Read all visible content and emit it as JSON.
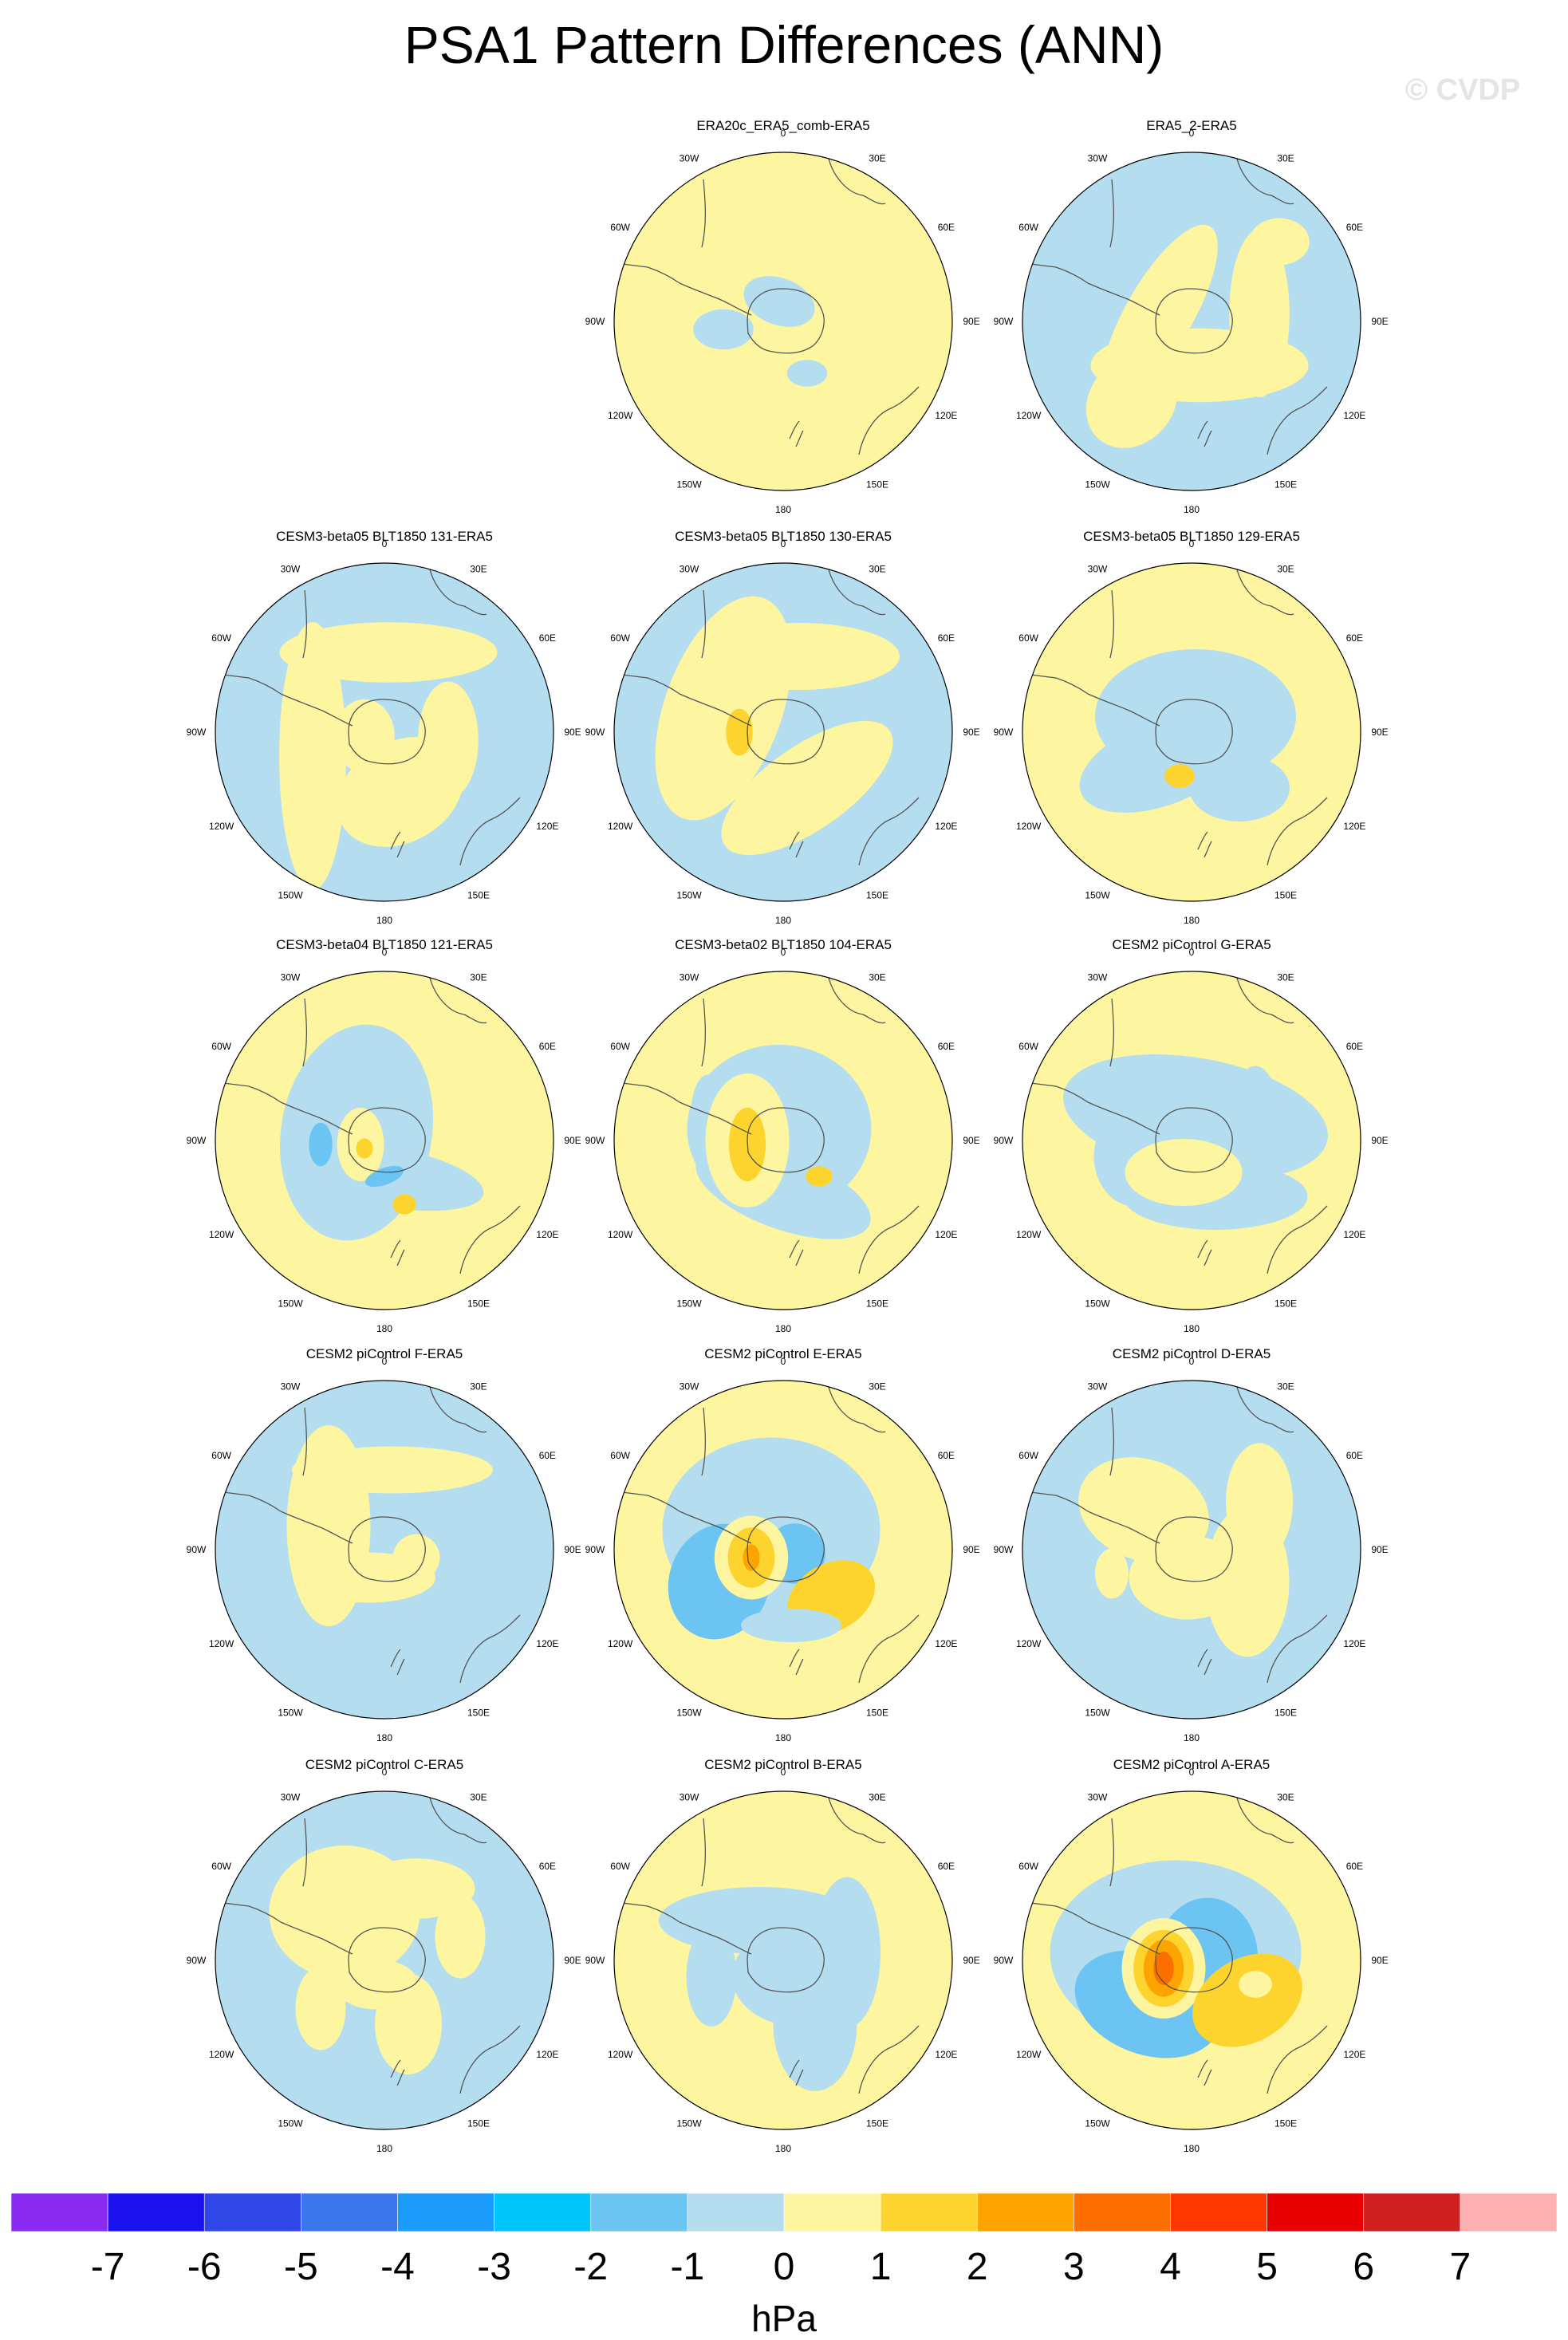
{
  "title": "PSA1 Pattern Differences (ANN)",
  "watermark": "© CVDP",
  "lon_labels": [
    "0",
    "30E",
    "60E",
    "90E",
    "120E",
    "150E",
    "180",
    "150W",
    "120W",
    "90W",
    "60W",
    "30W"
  ],
  "colors": {
    "neg2": "#6bc4f1",
    "neg1": "#b4def0",
    "pos1": "#fdf59f",
    "pos2": "#fdd42e",
    "pos3": "#fda400",
    "pos4": "#fd6e00",
    "coast": "#555555"
  },
  "panels": [
    {
      "title": "ERA20c_ERA5_comb-ERA5",
      "base": "pos1",
      "blobs": [
        [
          "neg1",
          -5,
          25,
          22,
          14,
          20
        ],
        [
          "neg1",
          -75,
          -10,
          18,
          12,
          0
        ],
        [
          "neg1",
          30,
          -65,
          12,
          8,
          0
        ]
      ]
    },
    {
      "title": "ERA5_2-ERA5",
      "base": "neg1",
      "blobs": [
        [
          "pos1",
          -40,
          10,
          20,
          60,
          30
        ],
        [
          "pos1",
          10,
          -55,
          65,
          22,
          0
        ],
        [
          "pos1",
          -75,
          -100,
          25,
          30,
          40
        ],
        [
          "pos1",
          85,
          10,
          18,
          50,
          0
        ],
        [
          "pos1",
          110,
          100,
          18,
          14,
          0
        ]
      ]
    },
    {
      "title": "CESM3-beta05 BLT1850 131-ERA5",
      "base": "neg1",
      "blobs": [
        [
          "pos1",
          5,
          100,
          65,
          18,
          0
        ],
        [
          "pos1",
          80,
          -10,
          18,
          35,
          0
        ],
        [
          "pos1",
          -25,
          -5,
          18,
          22,
          0
        ],
        [
          "pos1",
          20,
          -75,
          40,
          30,
          -30
        ],
        [
          "pos1",
          -90,
          -30,
          20,
          80,
          0
        ]
      ]
    },
    {
      "title": "CESM3-beta05 BLT1850 130-ERA5",
      "base": "neg1",
      "blobs": [
        [
          "pos1",
          -75,
          30,
          35,
          70,
          20
        ],
        [
          "pos1",
          30,
          -70,
          60,
          25,
          -35
        ],
        [
          "pos1",
          20,
          95,
          60,
          20,
          0
        ],
        [
          "pos2",
          -55,
          0,
          8,
          14,
          0
        ]
      ]
    },
    {
      "title": "CESM3-beta05 BLT1850 129-ERA5",
      "base": "pos1",
      "blobs": [
        [
          "neg1",
          5,
          20,
          60,
          40,
          0
        ],
        [
          "neg1",
          -40,
          -40,
          50,
          25,
          -20
        ],
        [
          "neg1",
          60,
          -70,
          30,
          20,
          0
        ],
        [
          "pos2",
          -15,
          -55,
          9,
          7,
          0
        ]
      ]
    },
    {
      "title": "CESM3-beta04 BLT1850 121-ERA5",
      "base": "pos1",
      "blobs": [
        [
          "neg1",
          -35,
          10,
          45,
          65,
          10
        ],
        [
          "neg1",
          0,
          -45,
          60,
          18,
          10
        ],
        [
          "pos1",
          -30,
          -5,
          14,
          22,
          0
        ],
        [
          "pos2",
          -25,
          -10,
          5,
          6,
          0
        ],
        [
          "neg2",
          -80,
          -5,
          7,
          13,
          0
        ],
        [
          "neg2",
          0,
          -45,
          12,
          5,
          -20
        ],
        [
          "pos2",
          25,
          -80,
          7,
          6,
          0
        ]
      ]
    },
    {
      "title": "CESM3-beta02 BLT1850 104-ERA5",
      "base": "pos1",
      "blobs": [
        [
          "neg1",
          -5,
          15,
          55,
          50,
          0
        ],
        [
          "neg1",
          0,
          -65,
          55,
          22,
          20
        ],
        [
          "neg1",
          -95,
          30,
          10,
          25,
          0
        ],
        [
          "pos1",
          -45,
          0,
          25,
          40,
          0
        ],
        [
          "pos2",
          -45,
          -5,
          11,
          22,
          0
        ],
        [
          "pos2",
          45,
          -45,
          8,
          6,
          0
        ]
      ]
    },
    {
      "title": "CESM2 piControl G-ERA5",
      "base": "pos1",
      "blobs": [
        [
          "neg1",
          5,
          30,
          80,
          35,
          10
        ],
        [
          "neg1",
          -70,
          -20,
          25,
          30,
          0
        ],
        [
          "neg1",
          30,
          -70,
          55,
          20,
          0
        ],
        [
          "neg1",
          80,
          20,
          15,
          35,
          0
        ],
        [
          "pos1",
          -10,
          -40,
          35,
          20,
          0
        ]
      ]
    },
    {
      "title": "CESM2 piControl F-ERA5",
      "base": "neg1",
      "blobs": [
        [
          "pos1",
          -70,
          30,
          25,
          60,
          0
        ],
        [
          "pos1",
          -20,
          -35,
          40,
          15,
          0
        ],
        [
          "pos1",
          10,
          100,
          60,
          14,
          0
        ],
        [
          "pos1",
          40,
          -10,
          14,
          14,
          0
        ]
      ]
    },
    {
      "title": "CESM2 piControl E-ERA5",
      "base": "pos1",
      "blobs": [
        [
          "neg1",
          -15,
          25,
          65,
          55,
          0
        ],
        [
          "neg2",
          -80,
          -40,
          30,
          35,
          20
        ],
        [
          "neg1",
          15,
          -5,
          30,
          25,
          0
        ],
        [
          "neg2",
          15,
          -5,
          18,
          18,
          0
        ],
        [
          "pos1",
          -40,
          -10,
          22,
          25,
          0
        ],
        [
          "pos2",
          -40,
          -10,
          14,
          18,
          0
        ],
        [
          "pos3",
          -40,
          -10,
          5,
          8,
          0
        ],
        [
          "pos2",
          60,
          -60,
          28,
          20,
          -30
        ],
        [
          "neg1",
          10,
          -95,
          30,
          10,
          0
        ]
      ]
    },
    {
      "title": "CESM2 piControl D-ERA5",
      "base": "neg1",
      "blobs": [
        [
          "pos1",
          -60,
          50,
          40,
          30,
          20
        ],
        [
          "pos1",
          -5,
          -35,
          35,
          25,
          0
        ],
        [
          "pos1",
          70,
          -40,
          25,
          45,
          0
        ],
        [
          "pos1",
          85,
          60,
          20,
          35,
          0
        ],
        [
          "pos1",
          -100,
          -30,
          10,
          15,
          0
        ]
      ]
    },
    {
      "title": "CESM2 piControl C-ERA5",
      "base": "neg1",
      "blobs": [
        [
          "pos1",
          -50,
          60,
          45,
          40,
          0
        ],
        [
          "pos1",
          40,
          90,
          35,
          18,
          0
        ],
        [
          "pos1",
          95,
          30,
          15,
          25,
          0
        ],
        [
          "pos1",
          -10,
          -30,
          25,
          15,
          0
        ],
        [
          "pos1",
          30,
          -80,
          20,
          30,
          0
        ],
        [
          "pos1",
          -80,
          -60,
          15,
          25,
          0
        ]
      ]
    },
    {
      "title": "CESM2 piControl B-ERA5",
      "base": "pos1",
      "blobs": [
        [
          "neg1",
          -30,
          50,
          60,
          20,
          0
        ],
        [
          "neg1",
          20,
          -20,
          40,
          30,
          0
        ],
        [
          "neg1",
          40,
          -80,
          25,
          40,
          0
        ],
        [
          "neg1",
          -90,
          -20,
          15,
          30,
          0
        ],
        [
          "neg1",
          80,
          10,
          20,
          45,
          0
        ]
      ]
    },
    {
      "title": "CESM2 piControl A-ERA5",
      "base": "pos1",
      "blobs": [
        [
          "neg1",
          -20,
          10,
          75,
          55,
          0
        ],
        [
          "neg2",
          -55,
          -55,
          45,
          30,
          20
        ],
        [
          "neg2",
          20,
          5,
          30,
          35,
          0
        ],
        [
          "pos1",
          -35,
          -10,
          25,
          30,
          0
        ],
        [
          "pos2",
          -35,
          -10,
          18,
          23,
          0
        ],
        [
          "pos3",
          -35,
          -10,
          12,
          17,
          0
        ],
        [
          "pos4",
          -35,
          -10,
          6,
          10,
          0
        ],
        [
          "pos2",
          70,
          -50,
          35,
          25,
          -30
        ],
        [
          "pos1",
          80,
          -30,
          10,
          8,
          0
        ]
      ]
    }
  ],
  "colorbar": {
    "colors": [
      "#8a2af0",
      "#1a12ef",
      "#2e47e6",
      "#3a77ec",
      "#1b9bfc",
      "#00c5fb",
      "#6bc4f1",
      "#b4def0",
      "#fdf59f",
      "#fdd42e",
      "#fda400",
      "#fd6e00",
      "#fe3700",
      "#e80000",
      "#d02020",
      "#feb0b0"
    ],
    "labels": [
      "-7",
      "-6",
      "-5",
      "-4",
      "-3",
      "-2",
      "-1",
      "0",
      "1",
      "2",
      "3",
      "4",
      "5",
      "6",
      "7"
    ],
    "units": "hPa"
  }
}
